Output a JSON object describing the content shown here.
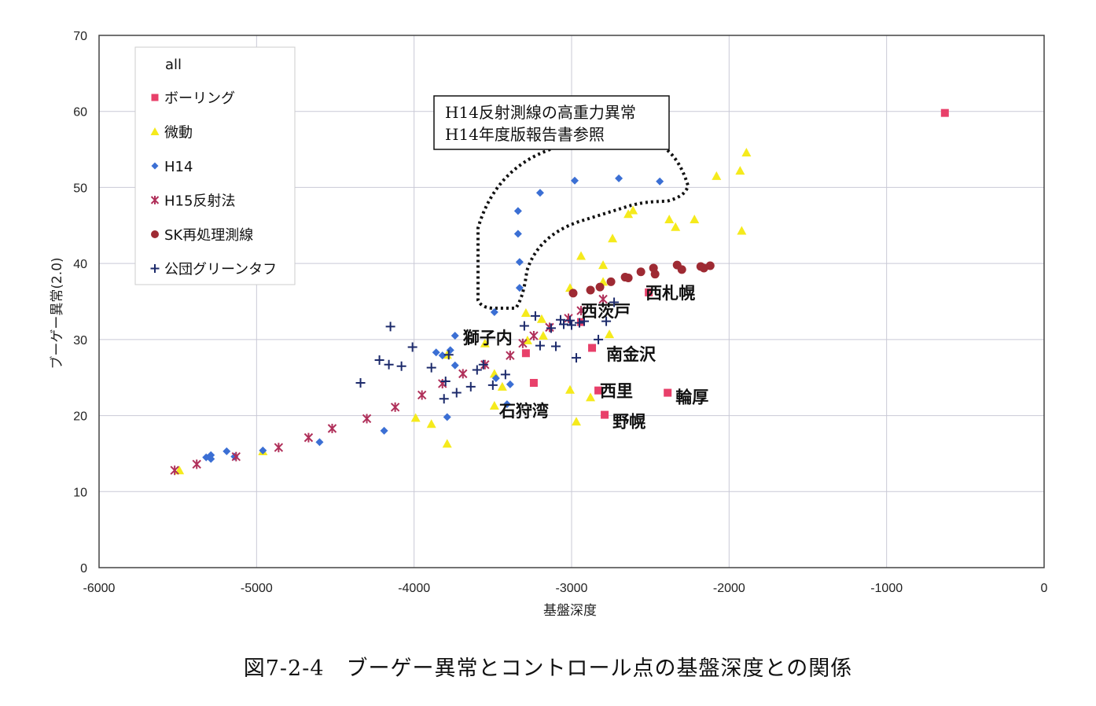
{
  "caption": "図7-2-4　ブーゲー異常とコントロール点の基盤深度との関係",
  "chart_data": {
    "type": "scatter",
    "xlabel": "基盤深度",
    "ylabel": "ブーゲー異常(2.0)",
    "xlim": [
      -6000,
      0
    ],
    "ylim": [
      0,
      70
    ],
    "xticks": [
      "-6000",
      "-5000",
      "-4000",
      "-3000",
      "-2000",
      "-1000",
      "0"
    ],
    "yticks": [
      "0",
      "10",
      "20",
      "30",
      "40",
      "50",
      "60",
      "70"
    ],
    "grid": true,
    "legend_title": "all",
    "legend_position": "top-left",
    "series": [
      {
        "name": "ボーリング",
        "marker": "square",
        "color": "#e8406a",
        "points": [
          [
            -3290,
            28.2
          ],
          [
            -3240,
            24.3
          ],
          [
            -2870,
            28.9
          ],
          [
            -2940,
            32.3
          ],
          [
            -2830,
            23.3
          ],
          [
            -2790,
            20.1
          ],
          [
            -2510,
            36.2
          ],
          [
            -2390,
            23.0
          ],
          [
            -630,
            59.8
          ]
        ]
      },
      {
        "name": "微動",
        "marker": "triangle",
        "color": "#f5ea1c",
        "points": [
          [
            -5490,
            12.8
          ],
          [
            -4960,
            15.3
          ],
          [
            -3990,
            19.7
          ],
          [
            -3890,
            18.9
          ],
          [
            -3790,
            16.3
          ],
          [
            -3790,
            28.0
          ],
          [
            -3550,
            29.5
          ],
          [
            -3490,
            21.3
          ],
          [
            -3490,
            25.5
          ],
          [
            -3440,
            23.8
          ],
          [
            -3290,
            33.5
          ],
          [
            -3280,
            29.9
          ],
          [
            -3190,
            32.7
          ],
          [
            -3180,
            30.5
          ],
          [
            -3010,
            23.4
          ],
          [
            -3010,
            36.8
          ],
          [
            -2970,
            19.2
          ],
          [
            -2940,
            41.0
          ],
          [
            -2880,
            22.4
          ],
          [
            -2800,
            37.6
          ],
          [
            -2800,
            39.8
          ],
          [
            -2760,
            30.7
          ],
          [
            -2740,
            43.3
          ],
          [
            -2640,
            46.5
          ],
          [
            -2610,
            47.0
          ],
          [
            -2380,
            45.8
          ],
          [
            -2340,
            44.8
          ],
          [
            -2220,
            45.8
          ],
          [
            -2080,
            51.5
          ],
          [
            -1930,
            52.2
          ],
          [
            -1920,
            44.3
          ],
          [
            -1890,
            54.6
          ]
        ]
      },
      {
        "name": "H14",
        "marker": "diamond",
        "color": "#3b6fd4",
        "points": [
          [
            -5320,
            14.5
          ],
          [
            -5290,
            14.3
          ],
          [
            -5290,
            14.8
          ],
          [
            -5190,
            15.3
          ],
          [
            -5140,
            14.6
          ],
          [
            -4960,
            15.4
          ],
          [
            -4600,
            16.5
          ],
          [
            -4190,
            18.0
          ],
          [
            -3860,
            28.3
          ],
          [
            -3820,
            27.9
          ],
          [
            -3790,
            19.8
          ],
          [
            -3770,
            28.6
          ],
          [
            -3740,
            26.6
          ],
          [
            -3740,
            30.5
          ],
          [
            -3490,
            33.6
          ],
          [
            -3480,
            24.9
          ],
          [
            -3410,
            21.5
          ],
          [
            -3390,
            24.1
          ],
          [
            -3330,
            36.8
          ],
          [
            -3330,
            40.2
          ],
          [
            -3340,
            43.9
          ],
          [
            -3340,
            46.9
          ],
          [
            -3200,
            49.3
          ],
          [
            -2980,
            50.9
          ],
          [
            -2700,
            51.2
          ],
          [
            -2440,
            50.8
          ]
        ]
      },
      {
        "name": "H15反射法",
        "marker": "asterisk",
        "color": "#b0305a",
        "points": [
          [
            -5520,
            12.8
          ],
          [
            -5380,
            13.6
          ],
          [
            -5130,
            14.6
          ],
          [
            -4860,
            15.8
          ],
          [
            -4670,
            17.1
          ],
          [
            -4520,
            18.3
          ],
          [
            -4300,
            19.6
          ],
          [
            -4120,
            21.1
          ],
          [
            -3950,
            22.7
          ],
          [
            -3820,
            24.2
          ],
          [
            -3690,
            25.5
          ],
          [
            -3550,
            26.7
          ],
          [
            -3390,
            27.9
          ],
          [
            -3310,
            29.5
          ],
          [
            -3240,
            30.5
          ],
          [
            -3140,
            31.6
          ],
          [
            -3020,
            32.8
          ],
          [
            -2940,
            33.8
          ],
          [
            -2800,
            35.3
          ]
        ]
      },
      {
        "name": "SK再処理測線",
        "marker": "circle",
        "color": "#9e2a33",
        "points": [
          [
            -2990,
            36.1
          ],
          [
            -2880,
            36.5
          ],
          [
            -2820,
            36.9
          ],
          [
            -2750,
            37.6
          ],
          [
            -2660,
            38.2
          ],
          [
            -2640,
            38.1
          ],
          [
            -2560,
            38.9
          ],
          [
            -2480,
            39.4
          ],
          [
            -2470,
            38.6
          ],
          [
            -2330,
            39.8
          ],
          [
            -2300,
            39.2
          ],
          [
            -2180,
            39.6
          ],
          [
            -2160,
            39.4
          ],
          [
            -2120,
            39.7
          ]
        ]
      },
      {
        "name": "公団グリーンタフ",
        "marker": "plus",
        "color": "#1c2a6b",
        "points": [
          [
            -4340,
            24.3
          ],
          [
            -4220,
            27.3
          ],
          [
            -4160,
            26.7
          ],
          [
            -4150,
            31.7
          ],
          [
            -4080,
            26.5
          ],
          [
            -4010,
            29.0
          ],
          [
            -3890,
            26.3
          ],
          [
            -3810,
            22.2
          ],
          [
            -3800,
            24.5
          ],
          [
            -3780,
            28.0
          ],
          [
            -3730,
            23.0
          ],
          [
            -3640,
            23.8
          ],
          [
            -3600,
            26.0
          ],
          [
            -3560,
            26.7
          ],
          [
            -3500,
            24.0
          ],
          [
            -3420,
            25.4
          ],
          [
            -3300,
            31.8
          ],
          [
            -3230,
            33.1
          ],
          [
            -3200,
            29.2
          ],
          [
            -3130,
            31.5
          ],
          [
            -3100,
            29.1
          ],
          [
            -3070,
            32.6
          ],
          [
            -3010,
            32.5
          ],
          [
            -3000,
            31.9
          ],
          [
            -2970,
            27.6
          ],
          [
            -2920,
            32.4
          ],
          [
            -2830,
            30.0
          ],
          [
            -2780,
            32.4
          ],
          [
            -2730,
            34.9
          ],
          [
            -3050,
            32.0
          ],
          [
            -2950,
            32.2
          ]
        ]
      }
    ],
    "annotations": [
      {
        "text": "西札幌",
        "x": -2530,
        "y": 36.2
      },
      {
        "text": "西茨戸",
        "x": -2940,
        "y": 33.8
      },
      {
        "text": "獅子内",
        "x": -3690,
        "y": 30.3
      },
      {
        "text": "南金沢",
        "x": -2780,
        "y": 28.1
      },
      {
        "text": "西里",
        "x": -2820,
        "y": 23.3
      },
      {
        "text": "輪厚",
        "x": -2340,
        "y": 22.5
      },
      {
        "text": "石狩湾",
        "x": -3460,
        "y": 20.7
      },
      {
        "text": "野幌",
        "x": -2740,
        "y": 19.3
      }
    ],
    "callout": {
      "lines": [
        "H14反射測線の高重力異常",
        "H14年度版報告書参照"
      ]
    }
  }
}
